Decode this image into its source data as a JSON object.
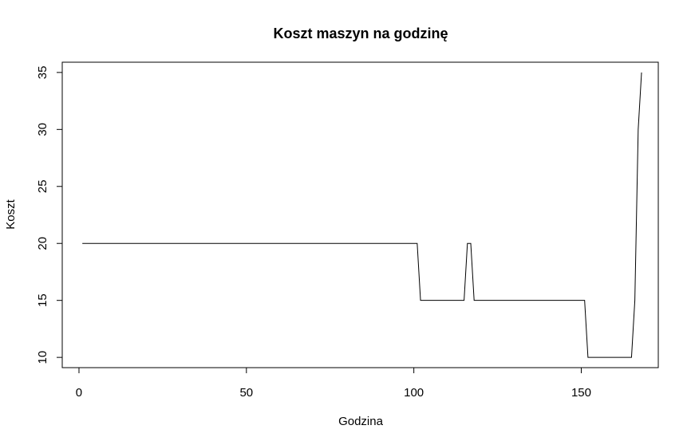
{
  "chart_data": {
    "type": "line",
    "title": "Koszt maszyn na godzinę",
    "xlabel": "Godzina",
    "ylabel": "Koszt",
    "xlim": [
      -5,
      173
    ],
    "ylim": [
      9.1,
      35.9
    ],
    "xticks": [
      0,
      50,
      100,
      150
    ],
    "yticks": [
      10,
      15,
      20,
      25,
      30,
      35
    ],
    "grid": false,
    "line_color": "#000000",
    "series": [
      {
        "points": [
          [
            1,
            20
          ],
          [
            101,
            20
          ],
          [
            102,
            15
          ],
          [
            115,
            15
          ],
          [
            116,
            20
          ],
          [
            117,
            20
          ],
          [
            118,
            15
          ],
          [
            151,
            15
          ],
          [
            152,
            10
          ],
          [
            165,
            10
          ],
          [
            166,
            15
          ],
          [
            167,
            30
          ],
          [
            168,
            35
          ]
        ]
      }
    ]
  }
}
